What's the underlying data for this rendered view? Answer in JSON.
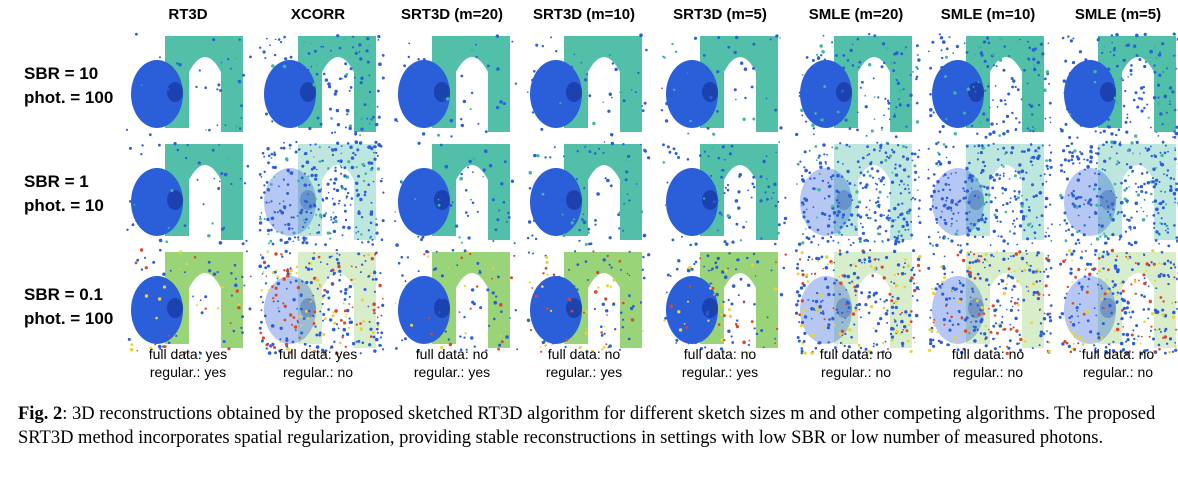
{
  "columns": [
    "RT3D",
    "XCORR",
    "SRT3D (m=20)",
    "SRT3D (m=10)",
    "SRT3D (m=5)",
    "SMLE (m=20)",
    "SMLE (m=10)",
    "SMLE (m=5)"
  ],
  "rows": [
    {
      "line1": "SBR = 10",
      "line2": "phot. = 100"
    },
    {
      "line1": "SBR = 1",
      "line2": "phot. = 10"
    },
    {
      "line1": "SBR = 0.1",
      "line2": "phot. = 100"
    }
  ],
  "flags": [
    {
      "full": "full data: yes",
      "reg": "regular.: yes"
    },
    {
      "full": "full data: yes",
      "reg": "regular.: no"
    },
    {
      "full": "full data: no",
      "reg": "regular.: yes"
    },
    {
      "full": "full data: no",
      "reg": "regular.: yes"
    },
    {
      "full": "full data: no",
      "reg": "regular.: yes"
    },
    {
      "full": "full data: no",
      "reg": "regular.: no"
    },
    {
      "full": "full data: no",
      "reg": "regular.: no"
    },
    {
      "full": "full data: no",
      "reg": "regular.: no"
    }
  ],
  "caption": {
    "label": "Fig. 2",
    "text": ": 3D reconstructions obtained by the proposed sketched RT3D algorithm for different sketch sizes m and other competing algorithms. The proposed SRT3D method incorporates spatial regularization, providing stable reconstructions in settings with low SBR or low number of measured photons."
  },
  "colors": {
    "face": "#2b5fd9",
    "face_dark": "#1a3fa8",
    "frame": "#3fb8a0",
    "noise_warm": "#e0452b",
    "noise_yellow": "#e8d43a"
  }
}
